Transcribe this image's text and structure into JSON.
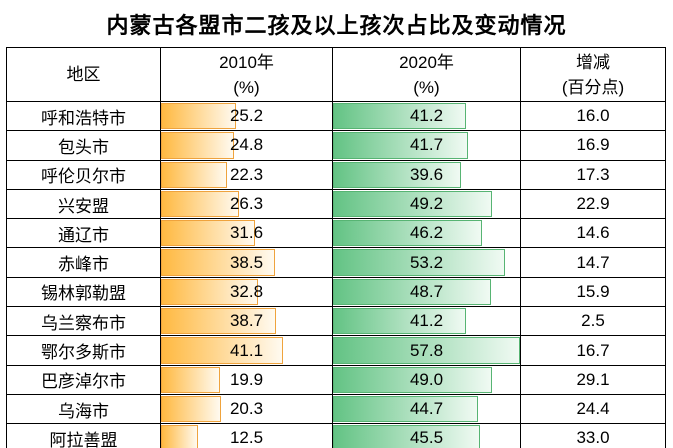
{
  "title": "内蒙古各盟市二孩及以上孩次占比及变动情况",
  "colors": {
    "title_color": "#000000",
    "bar_2010_fill": "#FFB941",
    "bar_2010_border": "#EFA33D",
    "bar_2020_fill": "#63C384",
    "bar_2020_border": "#57B473",
    "grid_line": "#000000"
  },
  "table": {
    "headers": {
      "region": "地区",
      "y2010": {
        "line1": "2010年",
        "line2": "(%)"
      },
      "y2020": {
        "line1": "2020年",
        "line2": "(%)"
      },
      "change": {
        "line1": "增减",
        "line2": "(百分点)"
      }
    },
    "rows": [
      {
        "region": "呼和浩特市",
        "y2010": "25.2",
        "y2020": "41.2",
        "change": "16.0"
      },
      {
        "region": "包头市",
        "y2010": "24.8",
        "y2020": "41.7",
        "change": "16.9"
      },
      {
        "region": "呼伦贝尔市",
        "y2010": "22.3",
        "y2020": "39.6",
        "change": "17.3"
      },
      {
        "region": "兴安盟",
        "y2010": "26.3",
        "y2020": "49.2",
        "change": "22.9"
      },
      {
        "region": "通辽市",
        "y2010": "31.6",
        "y2020": "46.2",
        "change": "14.6"
      },
      {
        "region": "赤峰市",
        "y2010": "38.5",
        "y2020": "53.2",
        "change": "14.7"
      },
      {
        "region": "锡林郭勒盟",
        "y2010": "32.8",
        "y2020": "48.7",
        "change": "15.9"
      },
      {
        "region": "乌兰察布市",
        "y2010": "38.7",
        "y2020": "41.2",
        "change": "2.5"
      },
      {
        "region": "鄂尔多斯市",
        "y2010": "41.1",
        "y2020": "57.8",
        "change": "16.7"
      },
      {
        "region": "巴彦淖尔市",
        "y2010": "19.9",
        "y2020": "49.0",
        "change": "29.1"
      },
      {
        "region": "乌海市",
        "y2010": "20.3",
        "y2020": "44.7",
        "change": "24.4"
      },
      {
        "region": "阿拉善盟",
        "y2010": "12.5",
        "y2020": "45.5",
        "change": "33.0"
      }
    ]
  },
  "chart_data": {
    "type": "bar",
    "subtype": "table-with-data-bars",
    "title": "内蒙古各盟市二孩及以上孩次占比及变动情况",
    "categories": [
      "呼和浩特市",
      "包头市",
      "呼伦贝尔市",
      "兴安盟",
      "通辽市",
      "赤峰市",
      "锡林郭勒盟",
      "乌兰察布市",
      "鄂尔多斯市",
      "巴彦淖尔市",
      "乌海市",
      "阿拉善盟"
    ],
    "series": [
      {
        "name": "2010年(%)",
        "color": "#FFB941",
        "values": [
          25.2,
          24.8,
          22.3,
          26.3,
          31.6,
          38.5,
          32.8,
          38.7,
          41.1,
          19.9,
          20.3,
          12.5
        ]
      },
      {
        "name": "2020年(%)",
        "color": "#63C384",
        "values": [
          41.2,
          41.7,
          39.6,
          49.2,
          46.2,
          53.2,
          48.7,
          41.2,
          57.8,
          49.0,
          44.7,
          45.5
        ]
      },
      {
        "name": "增减(百分点)",
        "color": null,
        "values": [
          16.0,
          16.9,
          17.3,
          22.9,
          14.6,
          14.7,
          15.9,
          2.5,
          16.7,
          29.1,
          24.4,
          33.0
        ]
      }
    ],
    "bar_scale_max": 57.8,
    "legend_position": "none",
    "grid": true
  }
}
